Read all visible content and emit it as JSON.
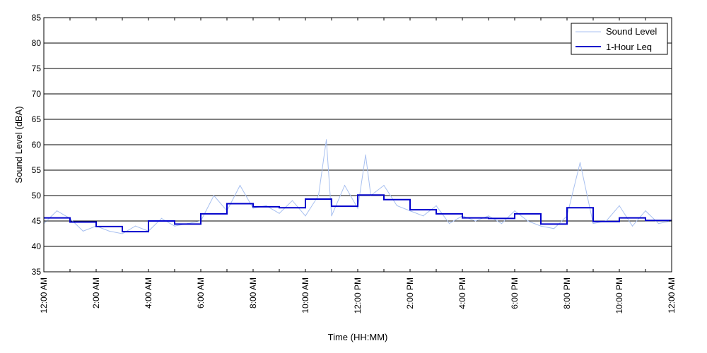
{
  "chart_data": {
    "type": "line",
    "title": "",
    "xlabel": "Time (HH:MM)",
    "ylabel": "Sound Level (dBA)",
    "xlim": [
      0,
      24
    ],
    "ylim": [
      35,
      85
    ],
    "y_ticks": [
      35,
      40,
      45,
      50,
      55,
      60,
      65,
      70,
      75,
      80,
      85
    ],
    "x_ticks": [
      0,
      2,
      4,
      6,
      8,
      10,
      12,
      14,
      16,
      18,
      20,
      22,
      24
    ],
    "x_tick_labels": [
      "12:00 AM",
      "2:00 AM",
      "4:00 AM",
      "6:00 AM",
      "8:00 AM",
      "10:00 AM",
      "12:00 PM",
      "2:00 PM",
      "4:00 PM",
      "6:00 PM",
      "8:00 PM",
      "10:00 PM",
      "12:00 AM"
    ],
    "grid": "horizontal",
    "legend_position": "top-right",
    "colors": {
      "sound_level": "#a8c0f0",
      "leq": "#0000cc"
    },
    "series": [
      {
        "name": "Sound Level",
        "x": [
          0.0,
          0.5,
          1.0,
          1.5,
          2.0,
          2.5,
          3.0,
          3.5,
          4.0,
          4.5,
          5.0,
          5.5,
          6.0,
          6.5,
          7.0,
          7.5,
          8.0,
          8.5,
          9.0,
          9.5,
          10.0,
          10.5,
          10.8,
          11.0,
          11.5,
          12.0,
          12.3,
          12.5,
          13.0,
          13.5,
          14.0,
          14.5,
          15.0,
          15.5,
          16.0,
          16.5,
          17.0,
          17.5,
          18.0,
          18.5,
          19.0,
          19.5,
          20.0,
          20.5,
          21.0,
          21.5,
          22.0,
          22.5,
          23.0,
          23.5,
          24.0
        ],
        "values": [
          44.5,
          47.0,
          45.5,
          43.0,
          44.0,
          43.0,
          42.5,
          44.0,
          43.0,
          45.5,
          44.0,
          44.5,
          45.0,
          50.0,
          47.0,
          52.0,
          47.5,
          48.0,
          46.5,
          49.0,
          46.0,
          50.0,
          61.0,
          46.0,
          52.0,
          47.5,
          58.0,
          50.0,
          52.0,
          48.0,
          47.0,
          46.0,
          48.0,
          44.5,
          46.0,
          45.0,
          46.0,
          44.5,
          47.0,
          45.0,
          44.0,
          43.5,
          46.0,
          56.5,
          44.5,
          45.0,
          48.0,
          44.0,
          47.0,
          44.5,
          45.0
        ]
      },
      {
        "name": "1-Hour Leq",
        "x": [
          0,
          1,
          2,
          3,
          4,
          5,
          6,
          7,
          8,
          9,
          10,
          11,
          12,
          13,
          14,
          15,
          16,
          17,
          18,
          19,
          20,
          21,
          22,
          23,
          24
        ],
        "values": [
          45.6,
          44.8,
          43.9,
          42.9,
          45.0,
          44.4,
          46.4,
          48.4,
          47.8,
          47.6,
          49.3,
          47.9,
          50.1,
          49.2,
          47.2,
          46.4,
          45.6,
          45.5,
          46.4,
          44.4,
          47.6,
          44.9,
          45.6,
          45.1,
          45.1
        ],
        "step": true
      }
    ]
  }
}
